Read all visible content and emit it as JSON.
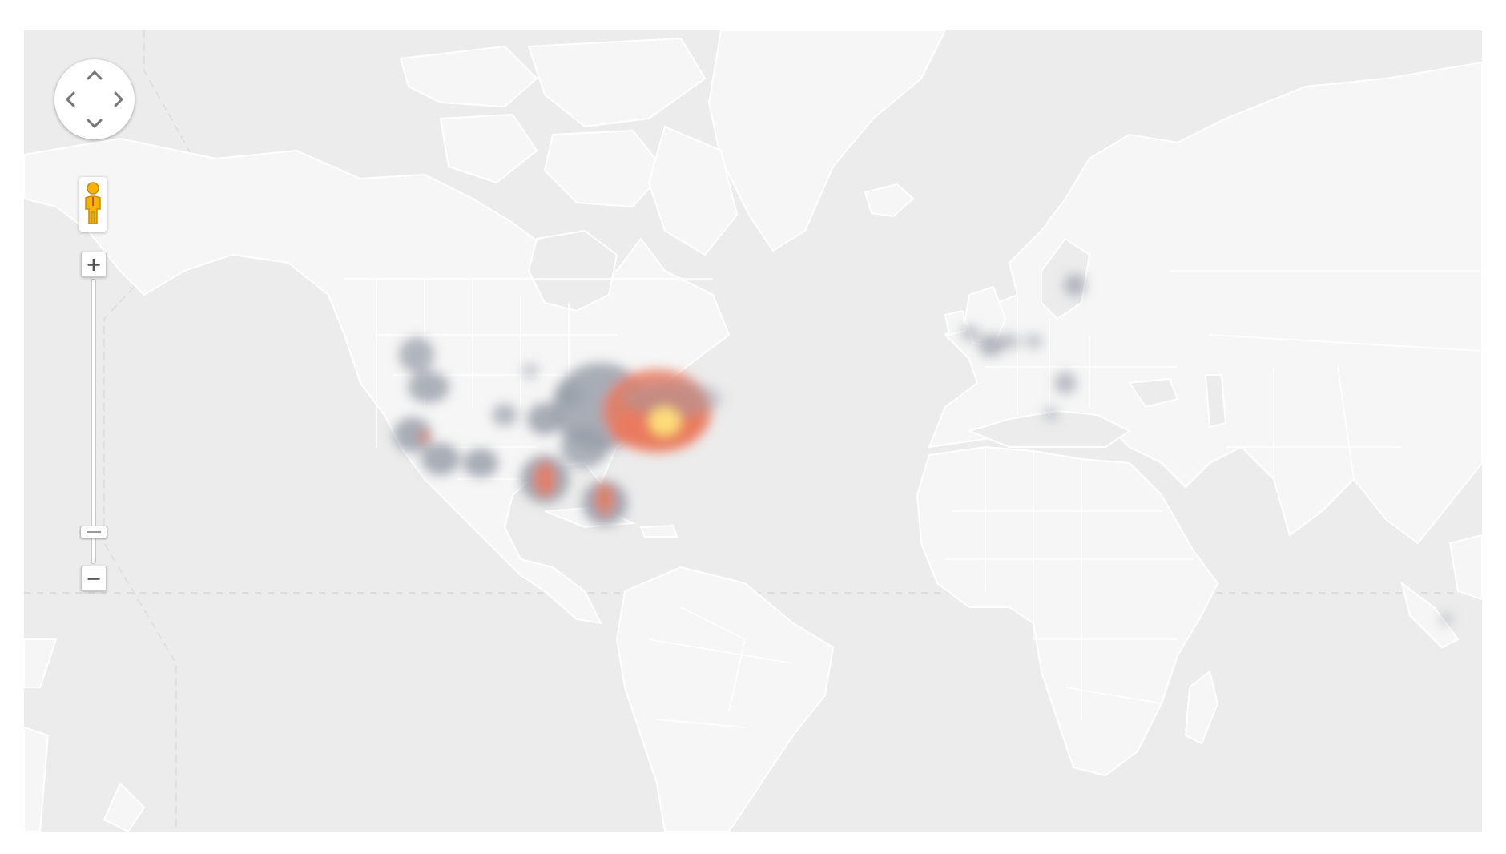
{
  "map": {
    "type": "heatmap",
    "base_color": "#ececec",
    "land_color": "#f6f6f6",
    "heat_colors": [
      "#9aa0aa",
      "#e97a5e",
      "#ffe27a"
    ]
  },
  "controls": {
    "pan": {
      "up_icon": "chevron-up-icon",
      "down_icon": "chevron-down-icon",
      "left_icon": "chevron-left-icon",
      "right_icon": "chevron-right-icon"
    },
    "pegman_icon": "pegman-icon",
    "zoom": {
      "in_label": "+",
      "out_label": "−",
      "level": 0.16
    }
  }
}
